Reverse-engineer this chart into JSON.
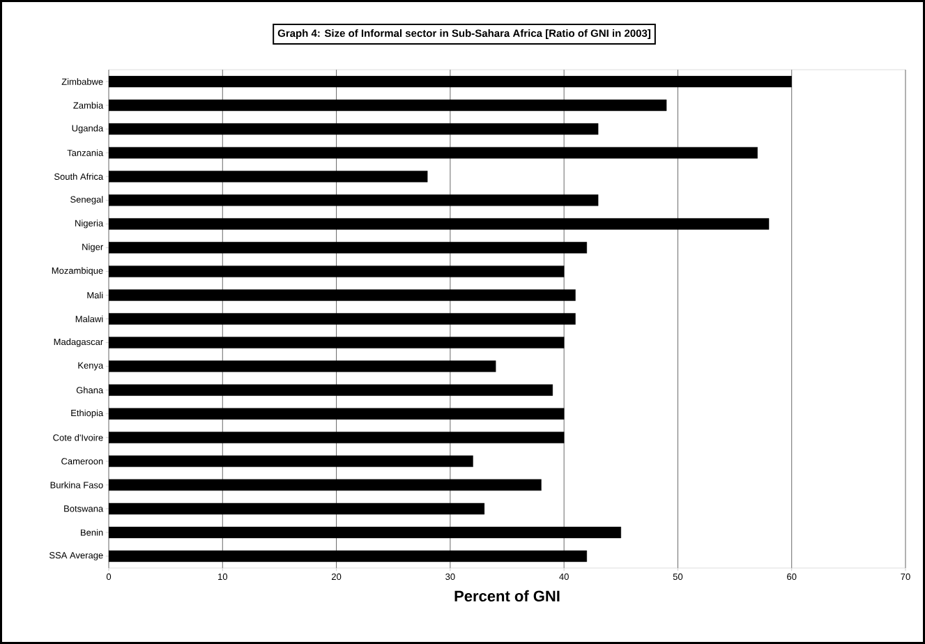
{
  "chart_data": {
    "type": "bar",
    "orientation": "horizontal",
    "title": "Graph 4: Size of Informal sector in Sub-Sahara Africa [Ratio of GNI in 2003]",
    "xlabel": "Percent of GNI",
    "categories": [
      "Zimbabwe",
      "Zambia",
      "Uganda",
      "Tanzania",
      "South Africa",
      "Senegal",
      "Nigeria",
      "Niger",
      "Mozambique",
      "Mali",
      "Malawi",
      "Madagascar",
      "Kenya",
      "Ghana",
      "Ethiopia",
      "Cote d'Ivoire",
      "Cameroon",
      "Burkina Faso",
      "Botswana",
      "Benin",
      "SSA Average"
    ],
    "values": [
      60,
      49,
      43,
      57,
      28,
      43,
      58,
      42,
      40,
      41,
      41,
      40,
      34,
      39,
      40,
      40,
      32,
      38,
      33,
      45,
      42
    ],
    "color": "#000000",
    "xlim": [
      0,
      70
    ],
    "xticks": [
      0,
      10,
      20,
      30,
      40,
      50,
      60,
      70
    ],
    "grid": "x"
  }
}
